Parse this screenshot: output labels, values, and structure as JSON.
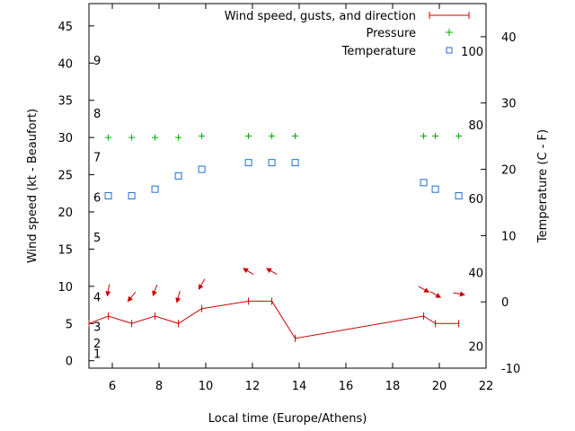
{
  "chart_data": {
    "type": "line",
    "xlabel": "Local time (Europe/Athens)",
    "ylabel": "Wind speed (kt - Beaufort)",
    "y2label": "Temperature (C - F)",
    "xlim": [
      5,
      22
    ],
    "ylim": [
      -1,
      48
    ],
    "y2lim": [
      -10,
      45
    ],
    "xticks": [
      6,
      8,
      10,
      12,
      14,
      16,
      18,
      20,
      22
    ],
    "yticks": [
      0,
      5,
      10,
      15,
      20,
      25,
      30,
      35,
      40,
      45
    ],
    "y2ticks": [
      -10,
      0,
      10,
      20,
      30,
      40
    ],
    "beaufort_labels": [
      {
        "y": 1,
        "label": "1"
      },
      {
        "y": 2.4,
        "label": "2"
      },
      {
        "y": 4.6,
        "label": "3"
      },
      {
        "y": 8.6,
        "label": "4"
      },
      {
        "y": 16.6,
        "label": "5"
      },
      {
        "y": 22,
        "label": "6"
      },
      {
        "y": 27.4,
        "label": "7"
      },
      {
        "y": 33.3,
        "label": "8"
      },
      {
        "y": 40.4,
        "label": "9"
      }
    ],
    "fahrenheit_labels": [
      {
        "y2": -6.7,
        "label": "20"
      },
      {
        "y2": 4.4,
        "label": "40"
      },
      {
        "y2": 15.6,
        "label": "60"
      },
      {
        "y2": 26.7,
        "label": "80"
      },
      {
        "y2": 37.8,
        "label": "100"
      }
    ],
    "legend_position": "top-right",
    "series": [
      {
        "name": "Wind speed, gusts, and direction",
        "color": "#cc0000",
        "x": [
          5,
          5.83,
          6.83,
          7.83,
          8.83,
          9.83,
          11.83,
          12.83,
          13.83,
          19.33,
          19.83,
          20.83
        ],
        "y": [
          5,
          6,
          5,
          6,
          5,
          7,
          8,
          8,
          3,
          6,
          5,
          5
        ]
      },
      {
        "name": "Pressure",
        "color": "#00aa00",
        "x": [
          5.83,
          6.83,
          7.83,
          8.83,
          9.83,
          11.83,
          12.83,
          13.83,
          19.33,
          19.83,
          20.83
        ],
        "y": [
          30,
          30,
          30,
          30,
          30.2,
          30.2,
          30.2,
          30.2,
          30.2,
          30.2,
          30.2
        ]
      },
      {
        "name": "Temperature",
        "color": "#1e6fd0",
        "x": [
          5.83,
          6.83,
          7.83,
          8.83,
          9.83,
          11.83,
          12.83,
          13.83,
          19.33,
          19.83,
          20.83
        ],
        "y2": [
          16,
          16,
          17,
          19,
          20,
          21,
          21,
          21,
          18,
          17,
          16
        ]
      }
    ],
    "wind_direction_arrows": [
      {
        "x": 5.83,
        "y": 9.5,
        "dir_deg": 10
      },
      {
        "x": 6.83,
        "y": 8.6,
        "dir_deg": 40
      },
      {
        "x": 7.83,
        "y": 9.5,
        "dir_deg": 20
      },
      {
        "x": 8.83,
        "y": 8.6,
        "dir_deg": 15
      },
      {
        "x": 9.83,
        "y": 10.3,
        "dir_deg": 30
      },
      {
        "x": 11.83,
        "y": 12,
        "dir_deg": 120
      },
      {
        "x": 12.83,
        "y": 12,
        "dir_deg": 120
      },
      {
        "x": 19.33,
        "y": 9.6,
        "dir_deg": 300
      },
      {
        "x": 19.83,
        "y": 8.9,
        "dir_deg": 300
      },
      {
        "x": 20.83,
        "y": 9,
        "dir_deg": 280
      }
    ]
  }
}
